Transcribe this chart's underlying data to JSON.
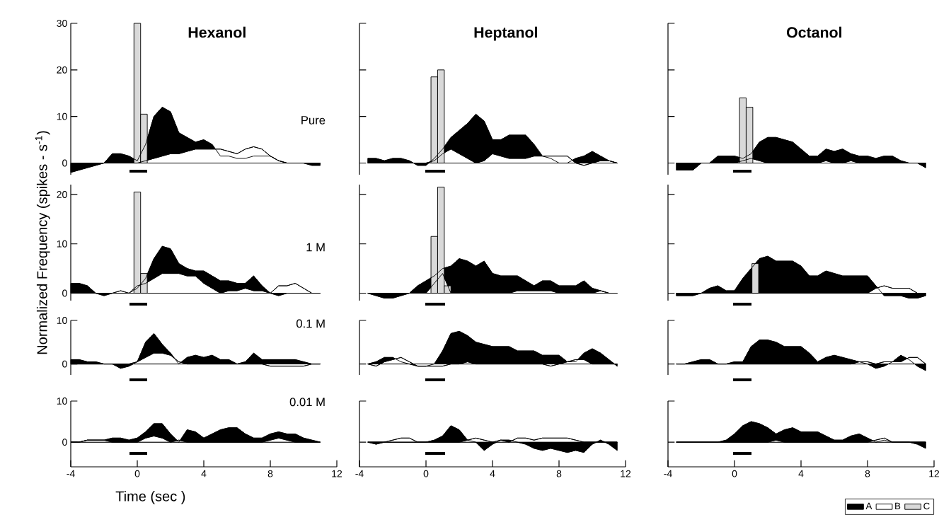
{
  "chart_data": [
    {
      "type": "area",
      "title": "Hexanol",
      "annotations": [
        "Pure"
      ],
      "tick_labels": "y",
      "xlim": [
        -4,
        12
      ],
      "ylim": [
        -2.5,
        30
      ],
      "yticks": [
        0,
        10,
        20,
        30
      ],
      "x": [
        -4,
        -3.5,
        -3,
        -2.5,
        -2,
        -1.5,
        -1,
        -0.5,
        0,
        0.5,
        1,
        1.5,
        2,
        2.5,
        3,
        3.5,
        4,
        4.5,
        5,
        5.5,
        6,
        6.5,
        7,
        7.5,
        8,
        8.5,
        9,
        9.5,
        10,
        10.5,
        11
      ],
      "series": [
        {
          "color": "#000000",
          "values": [
            -2,
            -1.5,
            -1,
            -0.5,
            0,
            2,
            2,
            1.5,
            0.5,
            4,
            10,
            12,
            11,
            6.5,
            5.5,
            4.5,
            5,
            4,
            1.5,
            1.5,
            1,
            1,
            1.5,
            1.5,
            1.5,
            0.5,
            0,
            0,
            0,
            -0.5,
            -0.5
          ]
        },
        {
          "color": "#ffffff",
          "values": [
            0,
            0,
            0,
            0,
            0,
            0,
            0,
            0,
            0,
            0.5,
            1,
            1.5,
            2,
            2,
            2.5,
            3,
            3,
            3,
            3,
            2.5,
            2,
            3,
            3.5,
            3,
            1.5,
            0.5,
            0,
            0,
            0,
            0,
            0
          ]
        },
        {
          "type": "bar",
          "color": "#d9d9d9",
          "x": [
            0,
            0.4
          ],
          "values": [
            30,
            10.5
          ]
        }
      ]
    },
    {
      "type": "area",
      "title": "Heptanol",
      "tick_labels": false,
      "xlim": [
        -4,
        12
      ],
      "ylim": [
        -2.5,
        30
      ],
      "yticks": [
        0,
        10,
        20,
        30
      ],
      "x": [
        -3.5,
        -3,
        -2.5,
        -2,
        -1.5,
        -1,
        -0.5,
        0,
        0.5,
        1,
        1.5,
        2,
        2.5,
        3,
        3.5,
        4,
        4.5,
        5,
        5.5,
        6,
        6.5,
        7,
        7.5,
        8,
        8.5,
        9,
        9.5,
        10,
        10.5,
        11,
        11.5
      ],
      "series": [
        {
          "color": "#000000",
          "values": [
            1,
            1,
            0.5,
            1,
            1,
            0.5,
            -0.5,
            -0.5,
            1,
            3,
            5.5,
            7,
            8.5,
            10.5,
            9,
            5,
            5,
            6,
            6,
            6,
            4,
            1.5,
            1,
            0,
            0,
            1,
            1.5,
            2.5,
            1.5,
            0.5,
            0
          ]
        },
        {
          "color": "#ffffff",
          "values": [
            0,
            0,
            0,
            0,
            0,
            0,
            0,
            0,
            0.5,
            2,
            3,
            2,
            1,
            0,
            0.5,
            2,
            1.5,
            1,
            1,
            1,
            1.5,
            1.5,
            1.5,
            1.5,
            1.5,
            0,
            -0.5,
            0,
            0.5,
            0.5,
            0
          ]
        },
        {
          "type": "bar",
          "color": "#d9d9d9",
          "x": [
            0.5,
            0.9
          ],
          "values": [
            18.5,
            20
          ]
        }
      ]
    },
    {
      "type": "area",
      "title": "Octanol",
      "tick_labels": false,
      "xlim": [
        -4,
        12
      ],
      "ylim": [
        -2.5,
        30
      ],
      "yticks": [
        0,
        10,
        20,
        30
      ],
      "x": [
        -3.5,
        -3,
        -2.5,
        -2,
        -1.5,
        -1,
        -0.5,
        0,
        0.5,
        1,
        1.5,
        2,
        2.5,
        3,
        3.5,
        4,
        4.5,
        5,
        5.5,
        6,
        6.5,
        7,
        7.5,
        8,
        8.5,
        9,
        9.5,
        10,
        10.5,
        11,
        11.5
      ],
      "series": [
        {
          "color": "#000000",
          "values": [
            -1.5,
            -1.5,
            -1.5,
            0,
            0,
            1.5,
            1.5,
            1.5,
            1,
            2,
            4.5,
            5.5,
            5.5,
            5,
            4.5,
            3,
            1.5,
            1.5,
            3,
            2.5,
            3,
            2,
            1.5,
            1.5,
            1,
            1.5,
            1.5,
            0.5,
            0,
            0,
            -1
          ]
        },
        {
          "color": "#ffffff",
          "values": [
            0,
            0,
            0,
            0,
            0,
            0,
            0,
            0,
            0.5,
            1,
            0.5,
            0,
            0,
            0,
            0,
            0,
            0,
            0,
            0.5,
            0,
            0,
            0.5,
            0,
            0,
            0,
            0,
            0,
            0,
            0,
            0,
            0
          ]
        },
        {
          "type": "bar",
          "color": "#d9d9d9",
          "x": [
            0.5,
            0.9
          ],
          "values": [
            14,
            12
          ]
        }
      ]
    },
    {
      "type": "area",
      "annotations": [
        "1 M"
      ],
      "ylabel": "Normalized Frequency (spikes - s$^{-1}$)",
      "tick_labels": "y",
      "xlim": [
        -4,
        12
      ],
      "ylim": [
        -1.5,
        22
      ],
      "yticks": [
        0,
        10,
        20
      ],
      "x": [
        -4,
        -3.5,
        -3,
        -2.5,
        -2,
        -1.5,
        -1,
        -0.5,
        0,
        0.5,
        1,
        1.5,
        2,
        2.5,
        3,
        3.5,
        4,
        4.5,
        5,
        5.5,
        6,
        6.5,
        7,
        7.5,
        8,
        8.5,
        9,
        9.5,
        10,
        10.5,
        11
      ],
      "series": [
        {
          "color": "#000000",
          "values": [
            2,
            2,
            1.5,
            0,
            -0.5,
            0,
            0,
            0,
            1,
            3,
            7,
            9.5,
            9,
            6,
            5,
            4.5,
            4.5,
            3.5,
            2.5,
            2.5,
            2,
            2,
            3.5,
            1.5,
            0,
            -0.5,
            0,
            0,
            0,
            0,
            0
          ]
        },
        {
          "color": "#ffffff",
          "values": [
            0,
            0,
            0,
            0,
            0,
            0,
            0.5,
            0,
            1.5,
            2,
            3,
            4,
            4,
            4,
            3.5,
            3.5,
            2,
            1,
            0,
            0.5,
            0.5,
            1,
            0.5,
            0.5,
            0,
            1.5,
            1.5,
            2,
            1,
            0,
            0
          ]
        },
        {
          "type": "bar",
          "color": "#d9d9d9",
          "x": [
            0,
            0.4
          ],
          "values": [
            20.5,
            4
          ]
        }
      ]
    },
    {
      "type": "area",
      "tick_labels": false,
      "xlim": [
        -4,
        12
      ],
      "ylim": [
        -1.5,
        22
      ],
      "yticks": [
        0,
        10,
        20
      ],
      "x": [
        -3.5,
        -3,
        -2.5,
        -2,
        -1.5,
        -1,
        -0.5,
        0,
        0.5,
        1,
        1.5,
        2,
        2.5,
        3,
        3.5,
        4,
        4.5,
        5,
        5.5,
        6,
        6.5,
        7,
        7.5,
        8,
        8.5,
        9,
        9.5,
        10,
        10.5,
        11,
        11.5
      ],
      "series": [
        {
          "color": "#000000",
          "values": [
            0,
            -0.5,
            -1,
            -1,
            -0.5,
            0,
            1.5,
            2.5,
            3.5,
            5,
            5.5,
            7,
            6.5,
            5.5,
            6.5,
            4,
            3.5,
            3.5,
            3.5,
            2.5,
            1.5,
            2.5,
            2.5,
            1.5,
            1.5,
            1.5,
            2.5,
            1,
            0.5,
            0,
            0
          ]
        },
        {
          "color": "#ffffff",
          "values": [
            0,
            0,
            0,
            0,
            0,
            0,
            0,
            0,
            2,
            4,
            0,
            0,
            0,
            0,
            0,
            0,
            0,
            0,
            0.5,
            0.5,
            0.5,
            0.5,
            0.5,
            0,
            0,
            0,
            0,
            0,
            0.5,
            0,
            0
          ]
        },
        {
          "type": "bar",
          "color": "#d9d9d9",
          "x": [
            0.5,
            0.9,
            1.3
          ],
          "values": [
            11.5,
            21.5,
            1.5
          ]
        }
      ]
    },
    {
      "type": "area",
      "tick_labels": false,
      "legend": "bottom right",
      "xlim": [
        -4,
        12
      ],
      "ylim": [
        -1.5,
        22
      ],
      "yticks": [
        0,
        10,
        20
      ],
      "x": [
        -3.5,
        -3,
        -2.5,
        -2,
        -1.5,
        -1,
        -0.5,
        0,
        0.5,
        1,
        1.5,
        2,
        2.5,
        3,
        3.5,
        4,
        4.5,
        5,
        5.5,
        6,
        6.5,
        7,
        7.5,
        8,
        8.5,
        9,
        9.5,
        10,
        10.5,
        11,
        11.5
      ],
      "series": [
        {
          "name": "A",
          "color": "#000000",
          "values": [
            -0.5,
            -0.5,
            -0.5,
            0,
            1,
            1.5,
            0.5,
            0.5,
            3,
            5,
            7,
            7.5,
            6.5,
            6.5,
            6.5,
            5.5,
            3.5,
            3.5,
            4.5,
            4,
            3.5,
            3.5,
            3.5,
            3.5,
            1.5,
            -0.5,
            -0.5,
            -0.5,
            -1,
            -1,
            -0.5
          ]
        },
        {
          "name": "B",
          "color": "#ffffff",
          "values": [
            0,
            0,
            0,
            0,
            0,
            0,
            0,
            0,
            0,
            0,
            0,
            0,
            0,
            0,
            0,
            0,
            0,
            0,
            0,
            0,
            0,
            0,
            0,
            0,
            1,
            1.5,
            1,
            1,
            1,
            0,
            0
          ]
        },
        {
          "name": "C",
          "type": "bar",
          "color": "#d9d9d9",
          "x": [
            1.25
          ],
          "values": [
            6
          ]
        }
      ]
    },
    {
      "type": "area",
      "annotations": [
        "0.1 M"
      ],
      "tick_labels": "y",
      "xlim": [
        -4,
        12
      ],
      "ylim": [
        -2.5,
        10
      ],
      "yticks": [
        0,
        10
      ],
      "x": [
        -4,
        -3.5,
        -3,
        -2.5,
        -2,
        -1.5,
        -1,
        -0.5,
        0,
        0.5,
        1,
        1.5,
        2,
        2.5,
        3,
        3.5,
        4,
        4.5,
        5,
        5.5,
        6,
        6.5,
        7,
        7.5,
        8,
        8.5,
        9,
        9.5,
        10,
        10.5,
        11
      ],
      "series": [
        {
          "color": "#000000",
          "values": [
            1,
            1,
            0.5,
            0.5,
            0,
            0,
            -1,
            -0.5,
            0.5,
            5,
            7,
            4.5,
            2.5,
            0,
            1.5,
            2,
            1.5,
            2,
            1,
            1,
            0,
            0.5,
            2.5,
            1,
            1,
            1,
            1,
            1,
            0.5,
            0,
            0
          ]
        },
        {
          "color": "#ffffff",
          "values": [
            0,
            0,
            0,
            0,
            0,
            0,
            0,
            0,
            0.5,
            1.5,
            2.5,
            2.5,
            2,
            0.5,
            0,
            0,
            0,
            0,
            0,
            0,
            0,
            0,
            0,
            0,
            -0.5,
            -0.5,
            -0.5,
            -0.5,
            -0.5,
            0,
            0
          ]
        }
      ]
    },
    {
      "type": "area",
      "tick_labels": false,
      "xlim": [
        -4,
        12
      ],
      "ylim": [
        -2.5,
        10
      ],
      "yticks": [
        0,
        10
      ],
      "x": [
        -3.5,
        -3,
        -2.5,
        -2,
        -1.5,
        -1,
        -0.5,
        0,
        0.5,
        1,
        1.5,
        2,
        2.5,
        3,
        3.5,
        4,
        4.5,
        5,
        5.5,
        6,
        6.5,
        7,
        7.5,
        8,
        8.5,
        9,
        9.5,
        10,
        10.5,
        11,
        11.5
      ],
      "series": [
        {
          "color": "#000000",
          "values": [
            0,
            0.5,
            1.5,
            1.5,
            0.5,
            0,
            -0.5,
            -0.5,
            0,
            3,
            7,
            7.5,
            6.5,
            5,
            4.5,
            4,
            4,
            4,
            3,
            3,
            3,
            2,
            2,
            2,
            0.5,
            0.5,
            2.5,
            3.5,
            2.5,
            1,
            -0.5
          ]
        },
        {
          "color": "#ffffff",
          "values": [
            0,
            -0.5,
            0.5,
            1,
            1.5,
            0.5,
            -0.5,
            -0.5,
            -0.5,
            -0.5,
            0,
            0,
            0.5,
            0,
            0,
            0,
            0,
            0,
            0,
            0,
            0,
            0,
            -0.5,
            0,
            0.5,
            1,
            1,
            0,
            0,
            0,
            0
          ]
        }
      ]
    },
    {
      "type": "area",
      "tick_labels": false,
      "xlim": [
        -4,
        12
      ],
      "ylim": [
        -2.5,
        10
      ],
      "yticks": [
        0,
        10
      ],
      "x": [
        -3.5,
        -3,
        -2.5,
        -2,
        -1.5,
        -1,
        -0.5,
        0,
        0.5,
        1,
        1.5,
        2,
        2.5,
        3,
        3.5,
        4,
        4.5,
        5,
        5.5,
        6,
        6.5,
        7,
        7.5,
        8,
        8.5,
        9,
        9.5,
        10,
        10.5,
        11,
        11.5
      ],
      "series": [
        {
          "color": "#000000",
          "values": [
            0,
            0,
            0.5,
            1,
            1,
            0,
            0,
            0.5,
            0.5,
            4,
            5.5,
            5.5,
            5,
            4,
            4,
            4,
            2.5,
            0.5,
            1.5,
            2,
            1.5,
            1,
            0.5,
            0,
            -1,
            -0.5,
            0.5,
            2,
            1,
            -0.5,
            -1.5
          ]
        },
        {
          "color": "#ffffff",
          "values": [
            0,
            0,
            0,
            0,
            0,
            0,
            0,
            0,
            0,
            0,
            0,
            0,
            0,
            0,
            0,
            0,
            0,
            0,
            0,
            0,
            0,
            0,
            0.5,
            0.5,
            0,
            0.5,
            0.5,
            0.5,
            1.5,
            1.5,
            0
          ]
        }
      ]
    },
    {
      "type": "area",
      "annotations": [
        "0.01 M"
      ],
      "xlabel": "Time (sec )",
      "xlim": [
        -4,
        12
      ],
      "xticks": [
        -4,
        0,
        4,
        8,
        12
      ],
      "ylim": [
        -6,
        10
      ],
      "yticks": [
        0,
        10
      ],
      "x": [
        -4,
        -3.5,
        -3,
        -2.5,
        -2,
        -1.5,
        -1,
        -0.5,
        0,
        0.5,
        1,
        1.5,
        2,
        2.5,
        3,
        3.5,
        4,
        4.5,
        5,
        5.5,
        6,
        6.5,
        7,
        7.5,
        8,
        8.5,
        9,
        9.5,
        10,
        10.5,
        11
      ],
      "series": [
        {
          "color": "#000000",
          "values": [
            0,
            0,
            0.5,
            0.5,
            0.5,
            1,
            1,
            0.5,
            1,
            2.5,
            4.5,
            4.5,
            2,
            0,
            3,
            2.5,
            1,
            2,
            3,
            3.5,
            3.5,
            2,
            1,
            1,
            2,
            2.5,
            2,
            2,
            1,
            0.5,
            0
          ]
        },
        {
          "color": "#ffffff",
          "values": [
            0,
            0,
            0.5,
            0.5,
            0.5,
            0,
            0,
            0,
            0,
            1,
            1.5,
            1,
            0,
            0.5,
            0,
            0,
            0,
            0,
            0,
            0,
            0,
            0,
            0,
            0,
            0.5,
            1,
            0.5,
            0,
            0,
            0,
            0
          ]
        }
      ]
    },
    {
      "type": "area",
      "tick_labels": "x",
      "xlim": [
        -4,
        12
      ],
      "xticks": [
        -4,
        0,
        4,
        8,
        12
      ],
      "ylim": [
        -6,
        10
      ],
      "yticks": [
        0,
        10
      ],
      "x": [
        -3.5,
        -3,
        -2.5,
        -2,
        -1.5,
        -1,
        -0.5,
        0,
        0.5,
        1,
        1.5,
        2,
        2.5,
        3,
        3.5,
        4,
        4.5,
        5,
        5.5,
        6,
        6.5,
        7,
        7.5,
        8,
        8.5,
        9,
        9.5,
        10,
        10.5,
        11,
        11.5
      ],
      "series": [
        {
          "color": "#000000",
          "values": [
            0,
            -0.5,
            0,
            0,
            0,
            0,
            0,
            0,
            0.5,
            1.5,
            4,
            3,
            0.5,
            0,
            -2,
            -0.5,
            0.5,
            0.5,
            0,
            -0.5,
            -1.5,
            -2,
            -1.5,
            -2,
            -2.5,
            -2,
            -2.5,
            -0.5,
            0.5,
            -0.5,
            -2
          ]
        },
        {
          "color": "#ffffff",
          "values": [
            0,
            0,
            0,
            0.5,
            1,
            1,
            0,
            0,
            0,
            0,
            0,
            0,
            0.5,
            1,
            0.5,
            0,
            0.5,
            0,
            1,
            1,
            0.5,
            1,
            1,
            1,
            1,
            0.5,
            0,
            0,
            0,
            0,
            0
          ]
        }
      ]
    },
    {
      "type": "area",
      "tick_labels": "x",
      "xlim": [
        -4,
        12
      ],
      "xticks": [
        -4,
        0,
        4,
        8,
        12
      ],
      "ylim": [
        -6,
        10
      ],
      "yticks": [
        0,
        10
      ],
      "x": [
        -3.5,
        -3,
        -2.5,
        -2,
        -1.5,
        -1,
        -0.5,
        0,
        0.5,
        1,
        1.5,
        2,
        2.5,
        3,
        3.5,
        4,
        4.5,
        5,
        5.5,
        6,
        6.5,
        7,
        7.5,
        8,
        8.5,
        9,
        9.5,
        10,
        10.5,
        11,
        11.5
      ],
      "series": [
        {
          "color": "#000000",
          "values": [
            0,
            0,
            0,
            0,
            0,
            0,
            0.5,
            2,
            4,
            5,
            4.5,
            3.5,
            2,
            3,
            3.5,
            2.5,
            2.5,
            2.5,
            1.5,
            0.5,
            0.5,
            1.5,
            2,
            1,
            0,
            0.5,
            0,
            0,
            0,
            -0.5,
            -1.5
          ]
        },
        {
          "color": "#ffffff",
          "values": [
            0,
            0,
            0,
            0,
            0,
            0,
            0,
            0,
            0,
            0,
            0,
            0,
            0.5,
            0,
            0,
            0,
            0,
            0,
            0,
            0,
            0,
            0,
            0,
            0,
            0.5,
            1,
            0,
            0,
            0,
            0,
            0
          ]
        }
      ]
    }
  ]
}
